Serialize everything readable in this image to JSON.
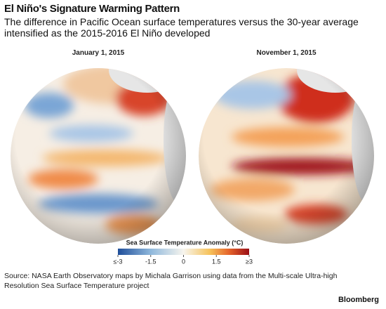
{
  "header": {
    "title": "El Niño's Signature Warming Pattern",
    "subtitle": "The difference in Pacific Ocean surface temperatures versus the 30-year average intensified as the 2015-2016 El Niño developed"
  },
  "maps": [
    {
      "label": "January 1, 2015"
    },
    {
      "label": "November 1, 2015"
    }
  ],
  "legend": {
    "title": "Sea Surface Temperature Anomaly (°C)",
    "range": [
      -3,
      3
    ],
    "ticks": [
      {
        "value": -3,
        "label": "≤-3"
      },
      -1.5,
      0,
      1.5,
      {
        "value": 3,
        "label": "≥3"
      }
    ]
  },
  "footer": {
    "source": "Source: NASA Earth Observatory maps by Michala Garrison using data from the Multi-scale Ultra-high Resolution Sea Surface Temperature project",
    "brand": "Bloomberg"
  }
}
